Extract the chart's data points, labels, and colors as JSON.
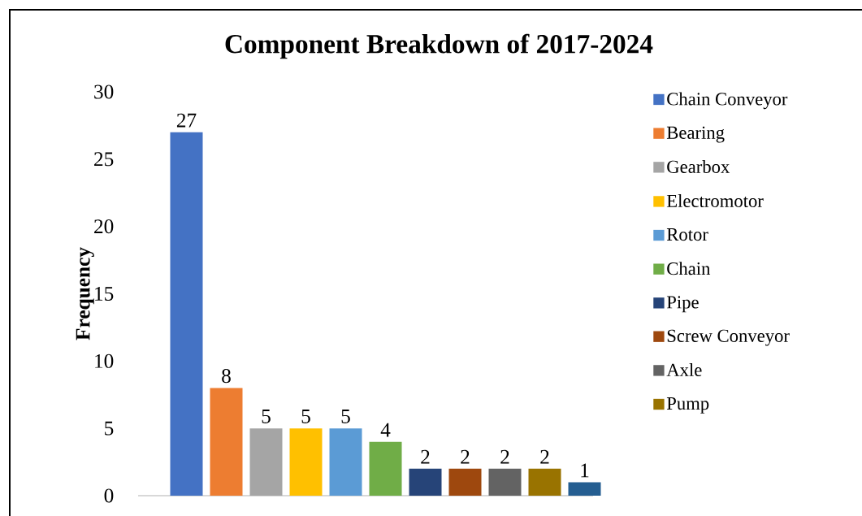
{
  "chart_data": {
    "type": "bar",
    "title": "Component Breakdown of 2017-2024",
    "ylabel": "Frequency",
    "categories": [
      null
    ],
    "series": [
      {
        "name": "Chain Conveyor",
        "color": "#4472c4",
        "values": [
          27
        ]
      },
      {
        "name": "Bearing",
        "color": "#ed7d31",
        "values": [
          8
        ]
      },
      {
        "name": "Gearbox",
        "color": "#a5a5a5",
        "values": [
          5
        ]
      },
      {
        "name": "Electromotor",
        "color": "#ffc000",
        "values": [
          5
        ]
      },
      {
        "name": "Rotor",
        "color": "#5b9bd5",
        "values": [
          5
        ]
      },
      {
        "name": "Chain",
        "color": "#70ad47",
        "values": [
          4
        ]
      },
      {
        "name": "Pipe",
        "color": "#264478",
        "values": [
          2
        ]
      },
      {
        "name": "Screw Conveyor",
        "color": "#9e480e",
        "values": [
          2
        ]
      },
      {
        "name": "Axle",
        "color": "#636363",
        "values": [
          2
        ]
      },
      {
        "name": "Pump",
        "color": "#997300",
        "values": [
          2
        ]
      },
      {
        "color": "#255e91",
        "values": [
          1
        ]
      }
    ],
    "ylim": [
      0,
      30
    ],
    "yticks": [
      0,
      5,
      10,
      15,
      20,
      25,
      30
    ],
    "data_labels": true,
    "legend": "right"
  }
}
